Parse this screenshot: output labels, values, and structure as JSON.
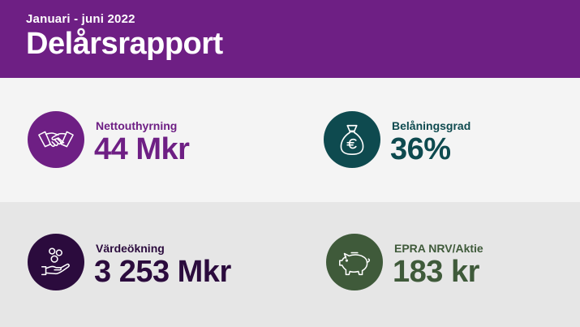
{
  "header": {
    "subtitle": "Januari - juni 2022",
    "title": "Delårsrapport"
  },
  "colors": {
    "header_bg": "#6e1f84",
    "band_light": "#f4f4f4",
    "band_dark": "#e6e6e6",
    "purple": "#6e1f84",
    "teal": "#0e4a4f",
    "dark_purple": "#2b0b3d",
    "green": "#3f5a3a"
  },
  "kpis": [
    {
      "label": "Nettouthyrning",
      "value": "44 Mkr",
      "icon": "handshake-icon",
      "color": "#6e1f84"
    },
    {
      "label": "Belåningsgrad",
      "value": "36%",
      "icon": "money-bag-euro-icon",
      "color": "#0e4a4f"
    },
    {
      "label": "Värdeökning",
      "value": "3 253 Mkr",
      "icon": "hand-coins-icon",
      "color": "#2b0b3d"
    },
    {
      "label": "EPRA NRV/Aktie",
      "value": "183 kr",
      "icon": "piggy-bank-icon",
      "color": "#3f5a3a"
    }
  ]
}
